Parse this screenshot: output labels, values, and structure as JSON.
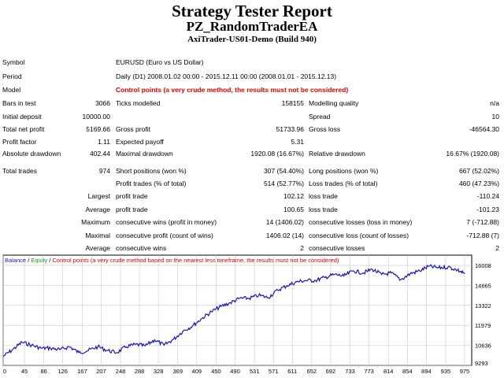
{
  "header": {
    "title": "Strategy Tester Report",
    "ea_name": "PZ_RandomTraderEA",
    "server": "AxiTrader-US01-Demo (Build 940)"
  },
  "summary": {
    "symbol_label": "Symbol",
    "symbol_value": "EURUSD (Euro vs US Dollar)",
    "period_label": "Period",
    "period_value": "Daily (D1) 2008.01.02 00:00 - 2015.12.11 00:00 (2008.01.01 - 2015.12.13)",
    "model_label": "Model",
    "model_value": "Control points (a very crude method, the results must not be considered)"
  },
  "stats": {
    "bars_label": "Bars in test",
    "bars_value": "3066",
    "ticks_label": "Ticks modelled",
    "ticks_value": "158155",
    "mq_label": "Modelling quality",
    "mq_value": "n/a",
    "deposit_label": "Initial deposit",
    "deposit_value": "10000.00",
    "spread_label": "Spread",
    "spread_value": "10",
    "tnp_label": "Total net profit",
    "tnp_value": "5169.66",
    "gp_label": "Gross profit",
    "gp_value": "51733.96",
    "gl_label": "Gross loss",
    "gl_value": "-46564.30",
    "pf_label": "Profit factor",
    "pf_value": "1.11",
    "ep_label": "Expected payoff",
    "ep_value": "5.31",
    "ad_label": "Absolute drawdown",
    "ad_value": "402.44",
    "md_label": "Maximal drawdown",
    "md_value": "1920.08 (16.67%)",
    "rd_label": "Relative drawdown",
    "rd_value": "16.67% (1920.08)",
    "tt_label": "Total trades",
    "tt_value": "974",
    "sp_label": "Short positions (won %)",
    "sp_value": "307 (54.40%)",
    "lp_label": "Long positions (won %)",
    "lp_value": "667 (52.02%)",
    "pt_label": "Profit trades (% of total)",
    "pt_value": "514 (52.77%)",
    "lt_label": "Loss trades (% of total)",
    "lt_value": "460 (47.23%)",
    "largest_label": "Largest",
    "l_pt_label": "profit trade",
    "l_pt_value": "102.12",
    "l_lt_label": "loss trade",
    "l_lt_value": "-110.24",
    "average_label": "Average",
    "a_pt_label": "profit trade",
    "a_pt_value": "100.65",
    "a_lt_label": "loss trade",
    "a_lt_value": "-101.23",
    "maximum_label": "Maximum",
    "mx_w_label": "consecutive wins (profit in money)",
    "mx_w_value": "14 (1406.02)",
    "mx_l_label": "consecutive losses (loss in money)",
    "mx_l_value": "7 (-712.88)",
    "maximal_label": "Maximal",
    "ml_p_label": "consecutive profit (count of wins)",
    "ml_p_value": "1406.02 (14)",
    "ml_l_label": "consecutive loss (count of losses)",
    "ml_l_value": "-712.88 (7)",
    "average2_label": "Average",
    "av_w_label": "consecutive wins",
    "av_w_value": "2",
    "av_l_label": "consecutive losses",
    "av_l_value": "2"
  },
  "chart_legend": {
    "balance": "Balance",
    "sep1": " / ",
    "equity": "Equity",
    "sep2": " / ",
    "control": "Control points (a very crude method based on the nearest less timeframe, the results must not be considered)"
  },
  "colors": {
    "line": "#1a1aa6",
    "grid": "#c8c8c8",
    "red": "#e00000",
    "equity": "#19a019"
  },
  "chart_data": {
    "type": "line",
    "title": "",
    "xlabel": "",
    "ylabel": "",
    "x_ticks": [
      0,
      45,
      86,
      126,
      167,
      207,
      248,
      288,
      328,
      369,
      409,
      450,
      490,
      531,
      571,
      611,
      652,
      692,
      733,
      773,
      814,
      854,
      894,
      935,
      975
    ],
    "y_ticks": [
      9293,
      10636,
      11979,
      13322,
      14665,
      16008
    ],
    "xlim": [
      0,
      990
    ],
    "ylim": [
      9293,
      16700
    ],
    "grid": true,
    "series": [
      {
        "x": [
          0,
          20,
          40,
          60,
          80,
          100,
          120,
          140,
          160,
          180,
          200,
          220,
          240,
          260,
          280,
          300,
          320,
          340,
          360,
          380,
          400,
          420,
          440,
          460,
          480,
          500,
          520,
          540,
          560,
          580,
          600,
          620,
          640,
          660,
          680,
          700,
          720,
          740,
          760,
          780,
          800,
          820,
          840,
          860,
          880,
          900,
          920,
          940,
          960,
          975
        ],
        "values": [
          9900,
          10350,
          10850,
          10650,
          10450,
          10450,
          10350,
          10550,
          10150,
          10300,
          10550,
          10300,
          10150,
          10550,
          10700,
          10600,
          11000,
          10650,
          11050,
          11600,
          11950,
          12450,
          12900,
          13250,
          13500,
          13800,
          13800,
          14000,
          13850,
          14350,
          14650,
          14900,
          15000,
          15000,
          15200,
          15400,
          15300,
          15650,
          15500,
          15750,
          15400,
          15500,
          15050,
          15450,
          15650,
          15950,
          15850,
          15900,
          15700,
          15450
        ]
      }
    ]
  }
}
